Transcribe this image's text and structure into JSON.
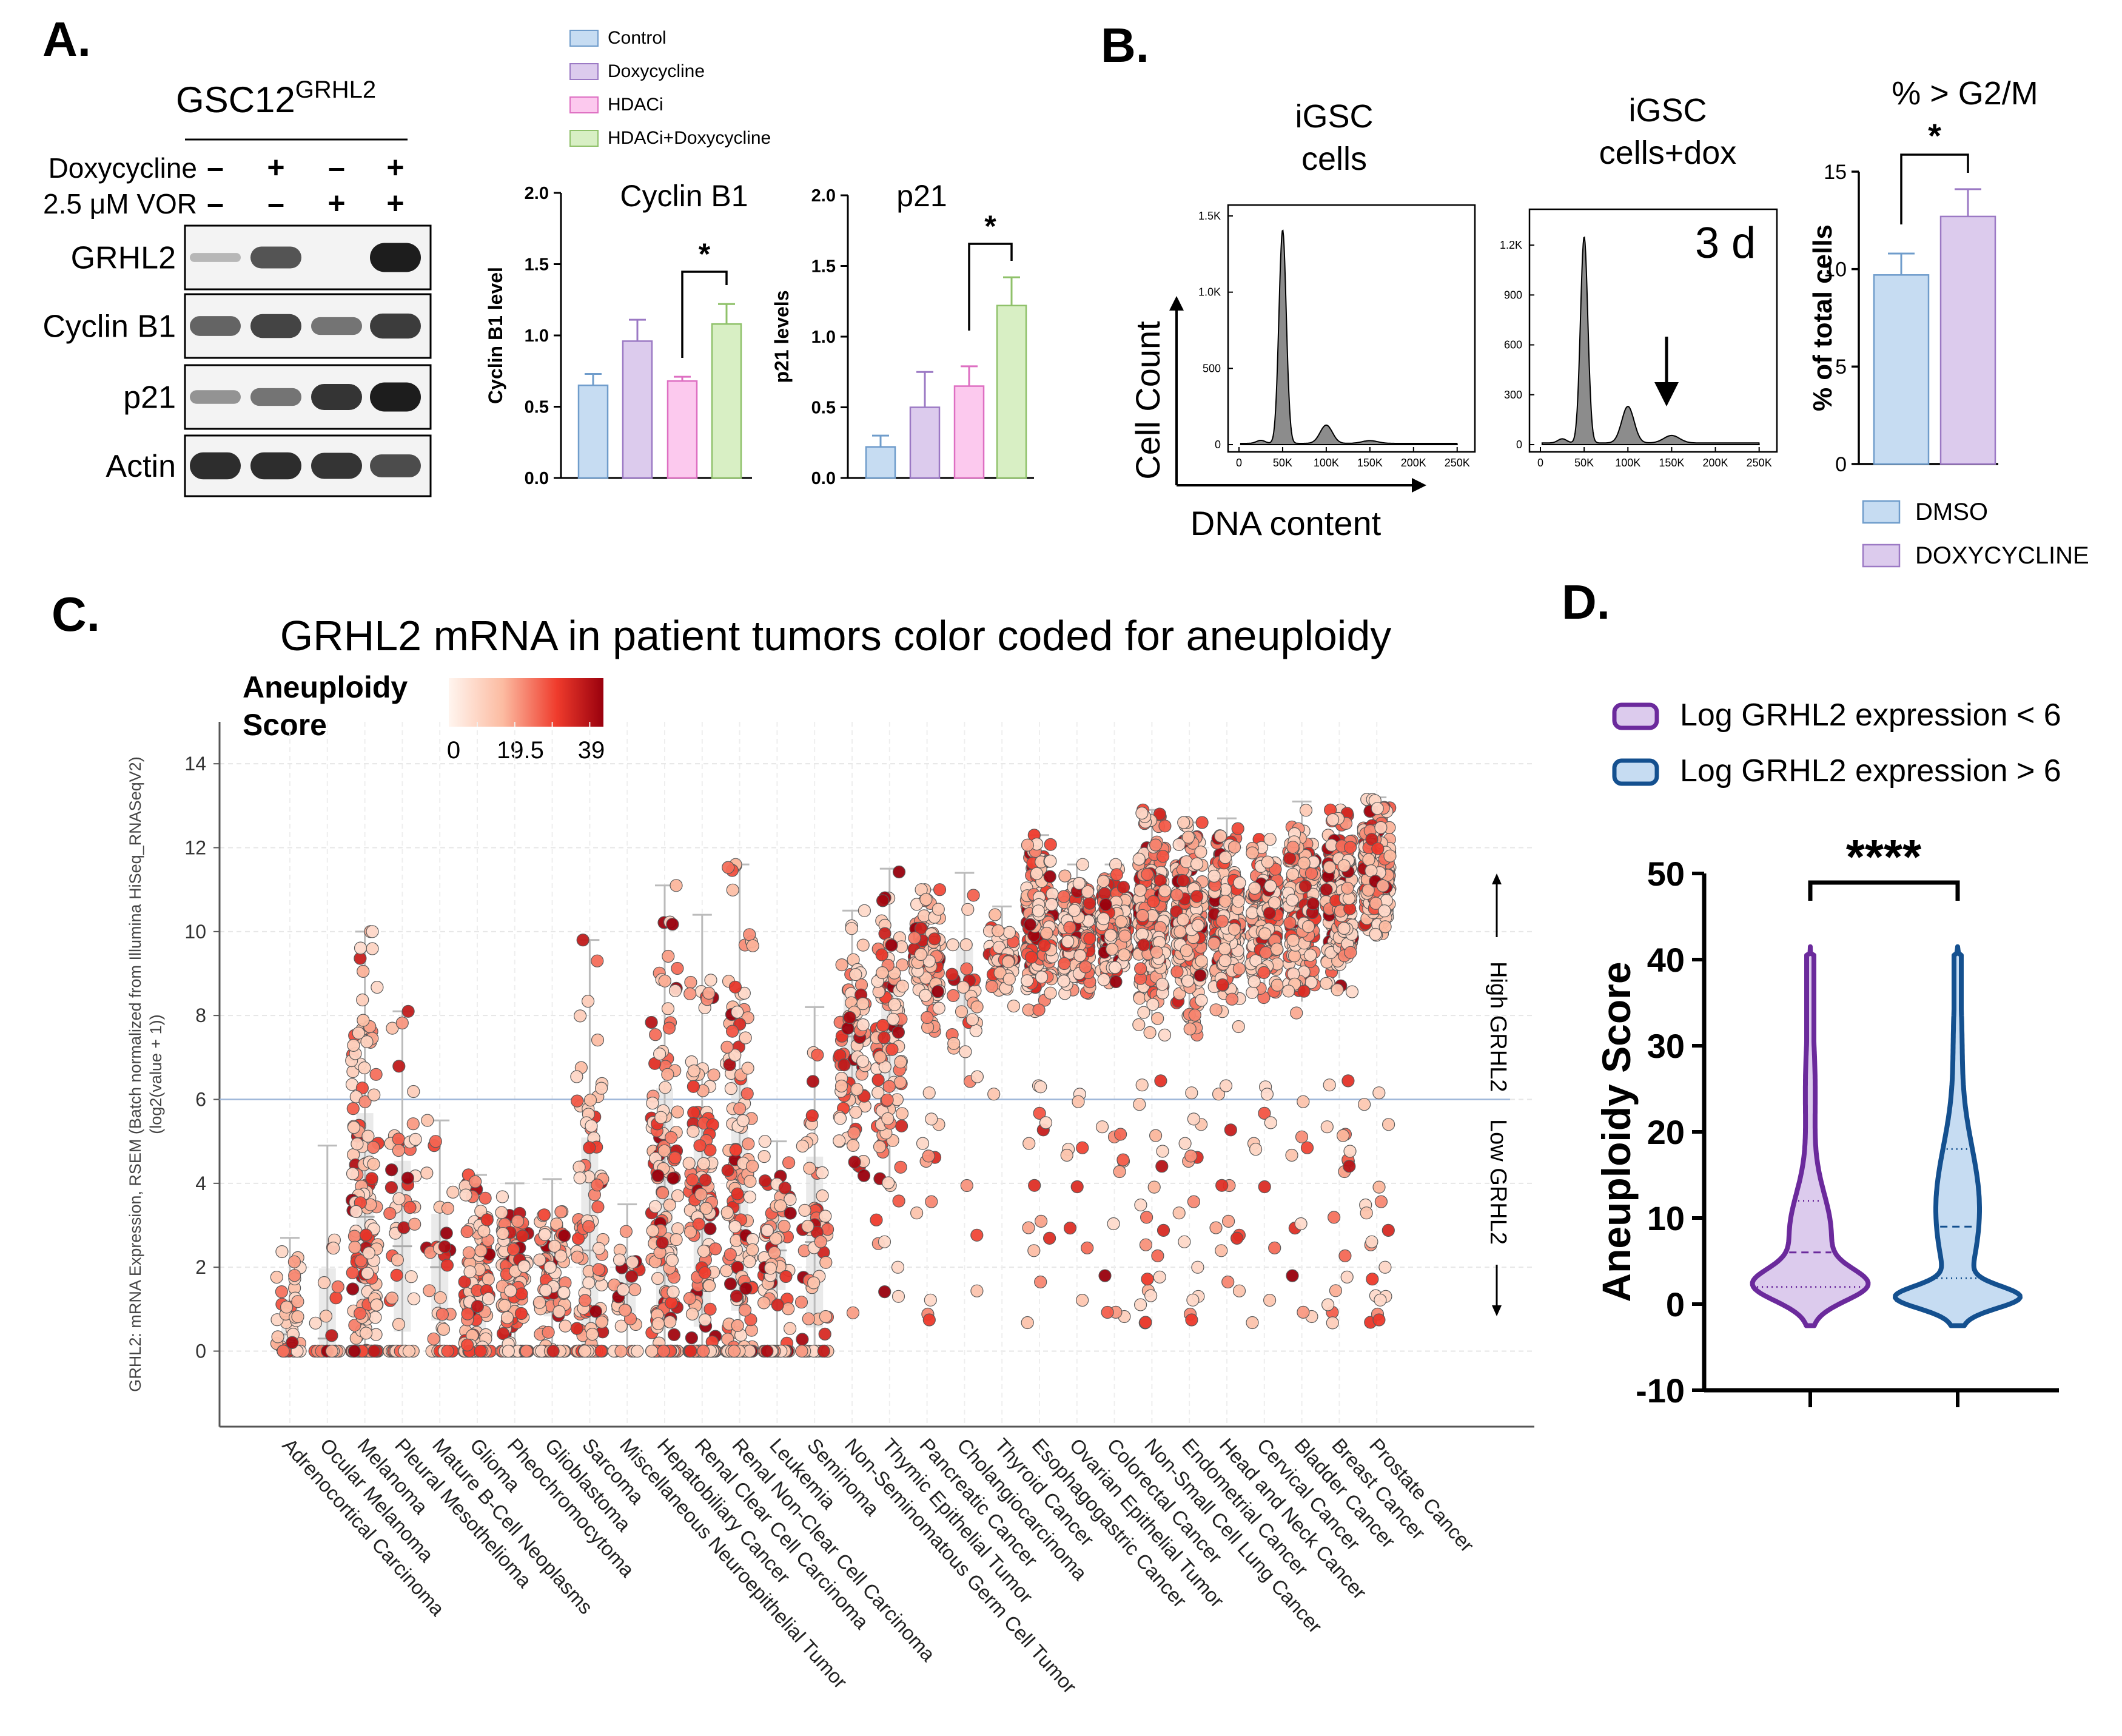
{
  "panelA": {
    "letter": "A.",
    "cell_line": "GSC12",
    "cell_line_sup": "GRHL2",
    "treatment_rows": [
      {
        "label": "Doxycycline",
        "signs": [
          "–",
          "+",
          "–",
          "+"
        ]
      },
      {
        "label": "2.5 μM VOR",
        "signs": [
          "–",
          "–",
          "+",
          "+"
        ]
      }
    ],
    "blots": [
      {
        "label": "GRHL2",
        "bands": [
          0.02,
          0.65,
          0.0,
          1.0
        ]
      },
      {
        "label": "Cyclin B1",
        "bands": [
          0.55,
          0.75,
          0.45,
          0.8
        ]
      },
      {
        "label": "p21",
        "bands": [
          0.25,
          0.45,
          0.85,
          1.0
        ]
      },
      {
        "label": "Actin",
        "bands": [
          0.9,
          0.9,
          0.85,
          0.7
        ]
      }
    ]
  },
  "legendA": [
    {
      "label": "Control",
      "color": "#c6dcf2",
      "stroke": "#6f9ccb"
    },
    {
      "label": "Doxycycline",
      "color": "#dccbed",
      "stroke": "#9b79c4"
    },
    {
      "label": "HDACi",
      "color": "#fcc9ee",
      "stroke": "#de6fc2"
    },
    {
      "label": "HDACi+Doxycycline",
      "color": "#d8efc4",
      "stroke": "#8fc16a"
    }
  ],
  "panelB": {
    "letter": "B.",
    "hist1": {
      "title_line1": "iGSC",
      "title_line2": "cells",
      "yticks": [
        "0",
        "500",
        "1.0K",
        "1.5K"
      ],
      "ymax": 1500
    },
    "hist2": {
      "title_line1": "iGSC",
      "title_line2": "cells+dox",
      "yticks": [
        "0",
        "300",
        "600",
        "900",
        "1.2K"
      ],
      "ymax": 1350,
      "label": "3 d"
    },
    "xticks": [
      "0",
      "50K",
      "100K",
      "150K",
      "200K",
      "250K"
    ],
    "ylabel": "Cell Count",
    "xlabel": "DNA content",
    "sig": "*",
    "legend": [
      {
        "label": "DMSO",
        "color": "#c6dcf2",
        "stroke": "#6f9ccb"
      },
      {
        "label": "DOXYCYCLINE",
        "color": "#dccbed",
        "stroke": "#9b79c4"
      }
    ]
  },
  "panelC": {
    "letter": "C.",
    "colorbar_title_1": "Aneuploidy",
    "colorbar_title_2": "Score",
    "colorbar_ticks": [
      "0",
      "19.5",
      "39"
    ],
    "ylabel_line1": "GRHL2: mRNA Expression, RSEM (Batch normalized from Illumina HiSeq_RNASeqV2)",
    "ylabel_line2": "(log2(value + 1))",
    "high_label": "High GRHL2",
    "low_label": "Low GRHL2",
    "threshold": 6
  },
  "panelD": {
    "letter": "D.",
    "sig": "****",
    "legend": [
      {
        "label": "Log GRHL2 expression < 6",
        "fill": "#dccbed",
        "stroke": "#6b2a9c"
      },
      {
        "label": "Log GRHL2 expression > 6",
        "fill": "#c6dcf2",
        "stroke": "#14508f"
      }
    ]
  },
  "chart_data": [
    {
      "type": "bar",
      "title": "Cyclin B1",
      "ylabel": "Cyclin B1 level",
      "ylim": [
        0,
        2.0
      ],
      "yticks": [
        "0.0",
        "0.5",
        "1.0",
        "1.5",
        "2.0"
      ],
      "categories": [
        "Control",
        "Doxycycline",
        "HDACi",
        "HDACi+Doxycycline"
      ],
      "values": [
        0.65,
        0.96,
        0.68,
        1.08
      ],
      "errors": [
        0.08,
        0.15,
        0.03,
        0.14
      ],
      "significance": {
        "between": [
          2,
          3
        ],
        "label": "*"
      }
    },
    {
      "type": "bar",
      "title": "p21",
      "ylabel": "p21 levels",
      "ylim": [
        0,
        2.0
      ],
      "yticks": [
        "0.0",
        "0.5",
        "1.0",
        "1.5",
        "2.0"
      ],
      "categories": [
        "Control",
        "Doxycycline",
        "HDACi",
        "HDACi+Doxycycline"
      ],
      "values": [
        0.22,
        0.5,
        0.65,
        1.22
      ],
      "errors": [
        0.08,
        0.25,
        0.14,
        0.2
      ],
      "significance": {
        "between": [
          2,
          3
        ],
        "label": "*"
      }
    },
    {
      "type": "bar",
      "title": "% > G2/M",
      "ylabel": "% of total cells",
      "ylim": [
        0,
        15
      ],
      "yticks": [
        "0",
        "5",
        "10",
        "15"
      ],
      "categories": [
        "DMSO",
        "DOXYCYCLINE"
      ],
      "values": [
        9.7,
        12.7
      ],
      "errors": [
        1.1,
        1.4
      ],
      "significance": {
        "between": [
          0,
          1
        ],
        "label": "*"
      }
    },
    {
      "type": "scatter",
      "title": "GRHL2 mRNA in patient tumors color coded for aneuploidy",
      "ylabel": "GRHL2: mRNA Expression, RSEM (Batch normalized from Illumina HiSeq_RNASeqV2) (log2(value + 1))",
      "ylim": [
        -1.8,
        15
      ],
      "yticks": [
        "0",
        "2",
        "4",
        "6",
        "8",
        "10",
        "12",
        "14"
      ],
      "categories": [
        {
          "name": "Adrenocortical Carcinoma",
          "median": 0.4,
          "max": 2.7,
          "n": 40
        },
        {
          "name": "Ocular Melanoma",
          "median": 0.3,
          "max": 4.9,
          "n": 40
        },
        {
          "name": "Melanoma",
          "median": 3.2,
          "max": 10.0,
          "n": 200
        },
        {
          "name": "Pleural Mesothelioma",
          "median": 2.5,
          "max": 8.1,
          "n": 60
        },
        {
          "name": "Mature B-Cell Neoplasms",
          "median": 2.0,
          "max": 5.5,
          "n": 40
        },
        {
          "name": "Glioma",
          "median": 1.4,
          "max": 4.2,
          "n": 160
        },
        {
          "name": "Pheochromocytoma",
          "median": 1.8,
          "max": 4.0,
          "n": 130
        },
        {
          "name": "Glioblastoma",
          "median": 1.7,
          "max": 4.1,
          "n": 110
        },
        {
          "name": "Sarcoma",
          "median": 2.4,
          "max": 9.8,
          "n": 130
        },
        {
          "name": "Miscellaneous Neuroepithelial Tumor",
          "median": 1.6,
          "max": 3.5,
          "n": 30
        },
        {
          "name": "Hepatobiliary Cancer",
          "median": 3.5,
          "max": 11.1,
          "n": 170
        },
        {
          "name": "Renal Clear Cell Carcinoma",
          "median": 3.2,
          "max": 10.4,
          "n": 190
        },
        {
          "name": "Renal Non-Clear Cell Carcinoma",
          "median": 3.8,
          "max": 11.6,
          "n": 190
        },
        {
          "name": "Leukemia",
          "median": 2.4,
          "max": 5.0,
          "n": 80
        },
        {
          "name": "Seminoma",
          "median": 2.6,
          "max": 8.2,
          "n": 70
        },
        {
          "name": "Non-Seminomatous Germ Cell Tumor",
          "median": 7.5,
          "max": 10.5,
          "n": 80
        },
        {
          "name": "Thymic Epithelial Tumor",
          "median": 7.6,
          "max": 11.5,
          "n": 100
        },
        {
          "name": "Pancreatic Cancer",
          "median": 9.4,
          "max": 11.0,
          "n": 130
        },
        {
          "name": "Cholangiocarcinoma",
          "median": 8.8,
          "max": 11.4,
          "n": 30
        },
        {
          "name": "Thyroid Cancer",
          "median": 9.5,
          "max": 10.6,
          "n": 60
        },
        {
          "name": "Esophagogastric Cancer",
          "median": 10.2,
          "max": 12.3,
          "n": 200
        },
        {
          "name": "Ovarian Epithelial Tumor",
          "median": 10.0,
          "max": 11.6,
          "n": 180
        },
        {
          "name": "Colorectal Cancer",
          "median": 10.2,
          "max": 11.6,
          "n": 200
        },
        {
          "name": "Non-Small Cell Lung Cancer",
          "median": 10.3,
          "max": 12.9,
          "n": 260
        },
        {
          "name": "Endometrial Cancer",
          "median": 10.2,
          "max": 12.6,
          "n": 230
        },
        {
          "name": "Head and Neck Cancer",
          "median": 10.4,
          "max": 12.7,
          "n": 200
        },
        {
          "name": "Cervical Cancer",
          "median": 10.3,
          "max": 12.2,
          "n": 180
        },
        {
          "name": "Bladder Cancer",
          "median": 10.6,
          "max": 13.1,
          "n": 200
        },
        {
          "name": "Breast Cancer",
          "median": 10.8,
          "max": 12.9,
          "n": 240
        },
        {
          "name": "Prostate Cancer",
          "median": 11.5,
          "max": 13.2,
          "n": 240
        }
      ],
      "threshold": 6
    },
    {
      "type": "violin",
      "ylabel": "Aneuploidy Score",
      "ylim": [
        -10,
        50
      ],
      "yticks": [
        "-10",
        "0",
        "10",
        "20",
        "30",
        "40",
        "50"
      ],
      "series": [
        {
          "name": "Log GRHL2 expression < 6",
          "min": -2.5,
          "max": 41.5,
          "q1": 2,
          "median": 6,
          "q3": 12
        },
        {
          "name": "Log GRHL2 expression > 6",
          "min": -2.5,
          "max": 41.5,
          "q1": 3,
          "median": 9,
          "q3": 18
        }
      ],
      "significance": "****"
    }
  ]
}
